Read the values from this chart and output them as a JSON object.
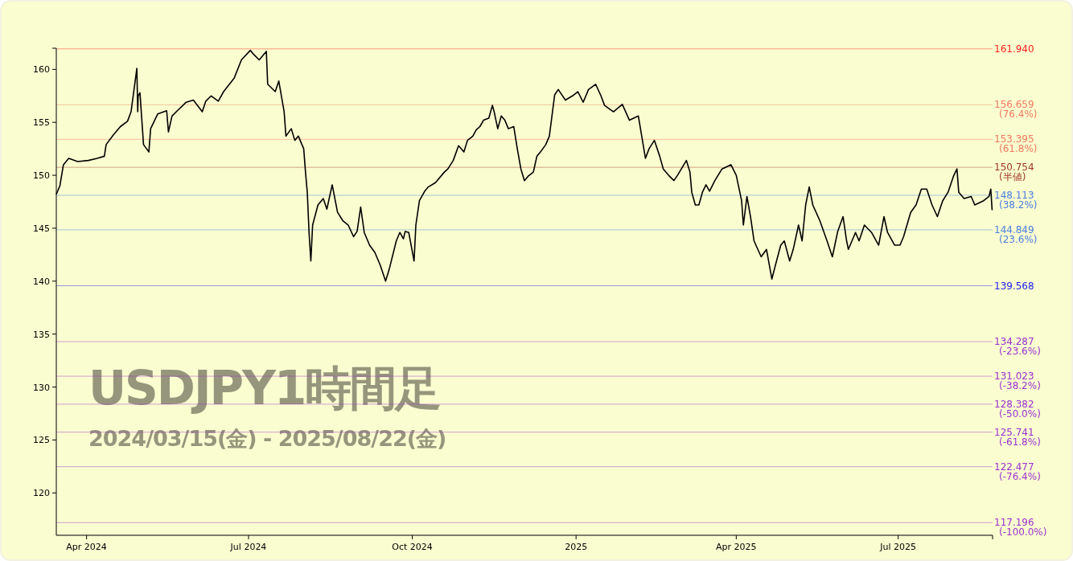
{
  "chart_data": {
    "type": "line",
    "title": "USDJPY1時間足",
    "subtitle": "2024/03/15(金) - 2025/08/22(金)",
    "xlim": [
      "2024-03-15",
      "2025-08-23"
    ],
    "xticks": [
      {
        "value": "2024-04-01",
        "label": "Apr 2024"
      },
      {
        "value": "2024-07-01",
        "label": "Jul 2024"
      },
      {
        "value": "2024-10-01",
        "label": "Oct 2024"
      },
      {
        "value": "2025-01-01",
        "label": "2025"
      },
      {
        "value": "2025-04-01",
        "label": "Apr 2025"
      },
      {
        "value": "2025-07-01",
        "label": "Jul 2025"
      }
    ],
    "ylim": [
      116,
      162
    ],
    "yticks": [
      120,
      125,
      130,
      135,
      140,
      145,
      150,
      155,
      160
    ],
    "grid": false,
    "marker": "none",
    "line_style": "solid",
    "series": [
      {
        "color": "#000000",
        "x": [
          "2024-03-15",
          "2024-03-17",
          "2024-03-19",
          "2024-03-22",
          "2024-03-27",
          "2024-04-02",
          "2024-04-07",
          "2024-04-11",
          "2024-04-12",
          "2024-04-16",
          "2024-04-20",
          "2024-04-24",
          "2024-04-26",
          "2024-04-29T06:00",
          "2024-04-29T18:00",
          "2024-04-30",
          "2024-05-01",
          "2024-05-03",
          "2024-05-06",
          "2024-05-07",
          "2024-05-11",
          "2024-05-16",
          "2024-05-17",
          "2024-05-19",
          "2024-05-22",
          "2024-05-27",
          "2024-05-31",
          "2024-06-05",
          "2024-06-07",
          "2024-06-10",
          "2024-06-14",
          "2024-06-17",
          "2024-06-23",
          "2024-06-27",
          "2024-07-02",
          "2024-07-04",
          "2024-07-07",
          "2024-07-11T00:00",
          "2024-07-11T18:00",
          "2024-07-16",
          "2024-07-18",
          "2024-07-21",
          "2024-07-22",
          "2024-07-25",
          "2024-07-27",
          "2024-07-29",
          "2024-08-01",
          "2024-08-02",
          "2024-08-03",
          "2024-08-04",
          "2024-08-05",
          "2024-08-06",
          "2024-08-09",
          "2024-08-12",
          "2024-08-14",
          "2024-08-17",
          "2024-08-20",
          "2024-08-23",
          "2024-08-26",
          "2024-08-29",
          "2024-08-31",
          "2024-09-02",
          "2024-09-04",
          "2024-09-07",
          "2024-09-10",
          "2024-09-13",
          "2024-09-16",
          "2024-09-18",
          "2024-09-22",
          "2024-09-24",
          "2024-09-26",
          "2024-09-27",
          "2024-09-29",
          "2024-10-02",
          "2024-10-03",
          "2024-10-05",
          "2024-10-08",
          "2024-10-10",
          "2024-10-14",
          "2024-10-19",
          "2024-10-21",
          "2024-10-24",
          "2024-10-27",
          "2024-10-30",
          "2024-11-01",
          "2024-11-04",
          "2024-11-06",
          "2024-11-08",
          "2024-11-10",
          "2024-11-13",
          "2024-11-15",
          "2024-11-16",
          "2024-11-18",
          "2024-11-20",
          "2024-11-22",
          "2024-11-24",
          "2024-11-27",
          "2024-11-29",
          "2024-12-01",
          "2024-12-03",
          "2024-12-05",
          "2024-12-08",
          "2024-12-10",
          "2024-12-12",
          "2024-12-15",
          "2024-12-17",
          "2024-12-20",
          "2024-12-22",
          "2024-12-26",
          "2024-12-30",
          "2025-01-02",
          "2025-01-05",
          "2025-01-08",
          "2025-01-12",
          "2025-01-15",
          "2025-01-17",
          "2025-01-22",
          "2025-01-27",
          "2025-01-31",
          "2025-02-05",
          "2025-02-09",
          "2025-02-11",
          "2025-02-14",
          "2025-02-17",
          "2025-02-19",
          "2025-02-22",
          "2025-02-25",
          "2025-02-27",
          "2025-03-04",
          "2025-03-06",
          "2025-03-07",
          "2025-03-09",
          "2025-03-11",
          "2025-03-13",
          "2025-03-15",
          "2025-03-17",
          "2025-03-20",
          "2025-03-24",
          "2025-03-29",
          "2025-04-01",
          "2025-04-04",
          "2025-04-05",
          "2025-04-07",
          "2025-04-09",
          "2025-04-11",
          "2025-04-15",
          "2025-04-18",
          "2025-04-21",
          "2025-04-23",
          "2025-04-26",
          "2025-04-28",
          "2025-05-01",
          "2025-05-03",
          "2025-05-06",
          "2025-05-08",
          "2025-05-10",
          "2025-05-12",
          "2025-05-14",
          "2025-05-18",
          "2025-05-22",
          "2025-05-25",
          "2025-05-28",
          "2025-05-31",
          "2025-06-02",
          "2025-06-03",
          "2025-06-07",
          "2025-06-09",
          "2025-06-12",
          "2025-06-16",
          "2025-06-20",
          "2025-06-23",
          "2025-06-25",
          "2025-06-29",
          "2025-07-02",
          "2025-07-04",
          "2025-07-08",
          "2025-07-11",
          "2025-07-14",
          "2025-07-17",
          "2025-07-20",
          "2025-07-23",
          "2025-07-26",
          "2025-07-29",
          "2025-08-01",
          "2025-08-03",
          "2025-08-04",
          "2025-08-07",
          "2025-08-11",
          "2025-08-13",
          "2025-08-18",
          "2025-08-21",
          "2025-08-22T00:00",
          "2025-08-22T18:00"
        ],
        "values": [
          148.2,
          149.0,
          151.0,
          151.6,
          151.3,
          151.4,
          151.6,
          151.8,
          152.9,
          153.8,
          154.6,
          155.1,
          156.0,
          160.1,
          156.0,
          157.5,
          157.8,
          152.9,
          152.2,
          154.4,
          155.8,
          156.1,
          154.1,
          155.6,
          156.1,
          156.9,
          157.1,
          156.0,
          157.0,
          157.5,
          157.0,
          157.9,
          159.2,
          160.9,
          161.8,
          161.4,
          160.9,
          161.7,
          158.6,
          157.9,
          158.9,
          156.0,
          153.7,
          154.4,
          153.3,
          153.7,
          152.5,
          150.3,
          148.4,
          144.6,
          141.9,
          145.3,
          147.2,
          147.8,
          146.8,
          149.1,
          146.5,
          145.7,
          145.3,
          144.2,
          144.7,
          147.0,
          144.6,
          143.4,
          142.7,
          141.5,
          140.0,
          141.1,
          143.8,
          144.6,
          144.0,
          144.7,
          144.6,
          141.9,
          145.3,
          147.6,
          148.5,
          148.9,
          149.3,
          150.3,
          150.6,
          151.4,
          152.8,
          152.2,
          153.3,
          153.7,
          154.3,
          154.6,
          155.2,
          155.4,
          156.6,
          156.0,
          154.4,
          155.6,
          155.2,
          154.4,
          154.6,
          152.5,
          150.6,
          149.5,
          149.9,
          150.3,
          151.8,
          152.2,
          152.9,
          153.7,
          157.6,
          158.1,
          157.1,
          157.5,
          157.9,
          156.9,
          158.1,
          158.6,
          157.5,
          156.6,
          156.0,
          156.7,
          155.2,
          155.6,
          151.6,
          152.5,
          153.3,
          151.8,
          150.6,
          150.0,
          149.5,
          150.0,
          151.4,
          150.3,
          148.4,
          147.2,
          147.2,
          148.4,
          149.1,
          148.5,
          149.5,
          150.6,
          151.0,
          150.0,
          147.6,
          145.3,
          148.0,
          146.1,
          143.8,
          142.3,
          143.0,
          140.2,
          141.5,
          143.4,
          143.8,
          141.9,
          143.0,
          145.3,
          143.8,
          147.2,
          148.9,
          147.2,
          145.7,
          143.8,
          142.3,
          144.7,
          146.1,
          143.8,
          143.0,
          144.6,
          143.8,
          145.3,
          144.6,
          143.4,
          146.1,
          144.6,
          143.4,
          143.4,
          144.2,
          146.5,
          147.2,
          148.7,
          148.7,
          147.2,
          146.1,
          147.6,
          148.4,
          149.9,
          150.6,
          148.4,
          147.8,
          148.0,
          147.2,
          147.6,
          148.0,
          148.7,
          146.7
        ]
      }
    ],
    "ref_lines": [
      {
        "axis": "y",
        "value": 161.94,
        "label": "161.940",
        "color": "#ff2020"
      },
      {
        "axis": "y",
        "value": 156.659,
        "label": "156.659 (76.4%)",
        "color": "#f07860"
      },
      {
        "axis": "y",
        "value": 153.395,
        "label": "153.395 (61.8%)",
        "color": "#f07860"
      },
      {
        "axis": "y",
        "value": 150.754,
        "label": "150.754 (半値)",
        "color": "#a03828"
      },
      {
        "axis": "y",
        "value": 148.113,
        "label": "148.113 (38.2%)",
        "color": "#4a7ee0"
      },
      {
        "axis": "y",
        "value": 144.849,
        "label": "144.849 (23.6%)",
        "color": "#4a7ee0"
      },
      {
        "axis": "y",
        "value": 139.568,
        "label": "139.568",
        "color": "#2020f0"
      },
      {
        "axis": "y",
        "value": 134.287,
        "label": "134.287 (-23.6%)",
        "color": "#9a30d0"
      },
      {
        "axis": "y",
        "value": 131.023,
        "label": "131.023 (-38.2%)",
        "color": "#9a30d0"
      },
      {
        "axis": "y",
        "value": 128.382,
        "label": "128.382 (-50.0%)",
        "color": "#9a30d0"
      },
      {
        "axis": "y",
        "value": 125.741,
        "label": "125.741 (-61.8%)",
        "color": "#9a30d0"
      },
      {
        "axis": "y",
        "value": 122.477,
        "label": "122.477 (-76.4%)",
        "color": "#9a30d0"
      },
      {
        "axis": "y",
        "value": 117.196,
        "label": "117.196 (-100.0%)",
        "color": "#9a30d0"
      }
    ]
  }
}
